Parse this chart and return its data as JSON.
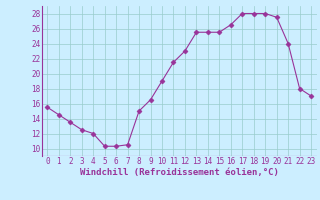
{
  "x": [
    0,
    1,
    2,
    3,
    4,
    5,
    6,
    7,
    8,
    9,
    10,
    11,
    12,
    13,
    14,
    15,
    16,
    17,
    18,
    19,
    20,
    21,
    22,
    23
  ],
  "y": [
    15.5,
    14.5,
    13.5,
    12.5,
    12.0,
    10.3,
    10.3,
    10.5,
    15.0,
    16.5,
    19.0,
    21.5,
    23.0,
    25.5,
    25.5,
    25.5,
    26.5,
    28.0,
    28.0,
    28.0,
    27.5,
    24.0,
    18.0,
    17.0
  ],
  "line_color": "#993399",
  "marker": "D",
  "marker_size": 2.5,
  "bg_color": "#cceeff",
  "grid_color": "#99cccc",
  "xlabel": "Windchill (Refroidissement éolien,°C)",
  "ylim_min": 9,
  "ylim_max": 29,
  "ytick_min": 10,
  "ytick_max": 28,
  "ytick_step": 2,
  "xticks": [
    0,
    1,
    2,
    3,
    4,
    5,
    6,
    7,
    8,
    9,
    10,
    11,
    12,
    13,
    14,
    15,
    16,
    17,
    18,
    19,
    20,
    21,
    22,
    23
  ],
  "tick_label_fontsize": 5.5,
  "xlabel_fontsize": 6.5,
  "font_family": "monospace"
}
